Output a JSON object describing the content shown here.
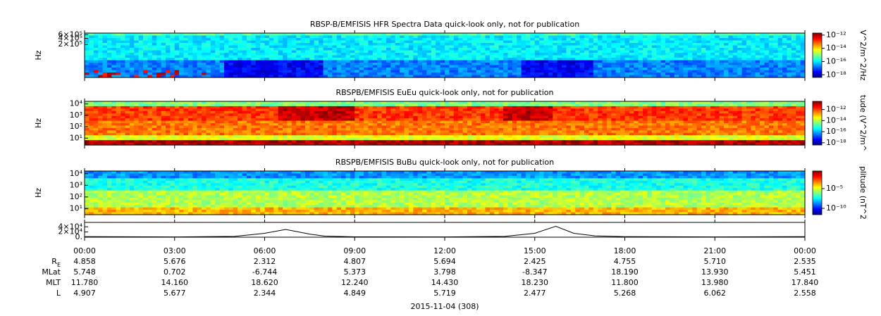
{
  "chart_data": [
    {
      "type": "spectrogram",
      "title": "RBSP-B/EMFISIS  HFR Spectra Data quick-look only, not for publication",
      "ylabel": "Hz",
      "log_y": true,
      "ylim": [
        5000,
        720000
      ],
      "yticks": [
        {
          "value": 600000,
          "label": "6×10⁵"
        },
        {
          "value": 400000,
          "label": "4×10⁵"
        },
        {
          "value": 200000,
          "label": "2×10⁵"
        }
      ],
      "colorbar": {
        "label": "V^2/m^2/Hz",
        "lim": [
          4e-19,
          2e-12
        ],
        "ticks": [
          {
            "value": 1e-12,
            "label": "10⁻¹²"
          },
          {
            "value": 1e-14,
            "label": "10⁻¹⁴"
          },
          {
            "value": 1e-16,
            "label": "10⁻¹⁶"
          },
          {
            "value": 1e-18,
            "label": "10⁻¹⁸"
          }
        ]
      }
    },
    {
      "type": "spectrogram",
      "title": "RBSPB/EMFISIS  EuEu quick-look only, not for publication",
      "ylabel": "Hz",
      "log_y": true,
      "ylim": [
        2.5,
        17000
      ],
      "yticks": [
        {
          "value": 10000,
          "label": "10⁴"
        },
        {
          "value": 1000,
          "label": "10³"
        },
        {
          "value": 100,
          "label": "10²"
        },
        {
          "value": 10,
          "label": "10¹"
        }
      ],
      "colorbar": {
        "label": "tude (V^2/m^",
        "lim": [
          4e-19,
          3e-11
        ],
        "ticks": [
          {
            "value": 1e-12,
            "label": "10⁻¹²"
          },
          {
            "value": 1e-14,
            "label": "10⁻¹⁴"
          },
          {
            "value": 1e-16,
            "label": "10⁻¹⁶"
          },
          {
            "value": 1e-18,
            "label": "10⁻¹⁸"
          }
        ]
      }
    },
    {
      "type": "spectrogram",
      "title": "RBSPB/EMFISIS  BuBu quick-look only, not for publication",
      "ylabel": "Hz",
      "log_y": true,
      "ylim": [
        3,
        17000
      ],
      "yticks": [
        {
          "value": 10000,
          "label": "10⁴"
        },
        {
          "value": 1000,
          "label": "10³"
        },
        {
          "value": 100,
          "label": "10²"
        },
        {
          "value": 10,
          "label": "10¹"
        }
      ],
      "colorbar": {
        "label": "plitude (nT^2",
        "lim": [
          2.5e-12,
          0.3
        ],
        "ticks": [
          {
            "value": 1e-05,
            "label": "10⁻⁵"
          },
          {
            "value": 1e-10,
            "label": "10⁻¹⁰"
          }
        ]
      }
    },
    {
      "type": "line",
      "color": "#000000",
      "xlim": [
        0,
        24
      ],
      "ylim": [
        0,
        57000
      ],
      "yticks": [
        {
          "value": 40000,
          "label": "4×10⁴"
        },
        {
          "value": 20000,
          "label": "2×10⁴"
        },
        {
          "value": 0,
          "label": "0."
        }
      ],
      "x": [
        0,
        3,
        5,
        6,
        6.7,
        7.5,
        8,
        9,
        12,
        14,
        15,
        15.7,
        16.3,
        17,
        18,
        21,
        24
      ],
      "values": [
        2000,
        1000,
        3000,
        15000,
        30000,
        12000,
        4000,
        1500,
        1000,
        3000,
        15000,
        42000,
        15000,
        5000,
        2000,
        1000,
        2000
      ],
      "xticks": [
        {
          "value": 0,
          "label": "00:00"
        },
        {
          "value": 3,
          "label": "03:00"
        },
        {
          "value": 6,
          "label": "06:00"
        },
        {
          "value": 9,
          "label": "09:00"
        },
        {
          "value": 12,
          "label": "12:00"
        },
        {
          "value": 15,
          "label": "15:00"
        },
        {
          "value": 18,
          "label": "18:00"
        },
        {
          "value": 21,
          "label": "21:00"
        },
        {
          "value": 24,
          "label": "00:00"
        }
      ],
      "xlabel": "2015-11-04 (308)",
      "ephemeris": [
        {
          "label": "R",
          "sub": "E",
          "values": [
            "4.858",
            "5.676",
            "2.312",
            "4.807",
            "5.694",
            "2.425",
            "4.755",
            "5.710",
            "2.535"
          ]
        },
        {
          "label": "MLat",
          "values": [
            "5.748",
            "0.702",
            "-6.744",
            "5.373",
            "3.798",
            "-8.347",
            "18.190",
            "13.930",
            "5.451"
          ]
        },
        {
          "label": "MLT",
          "values": [
            "11.780",
            "14.160",
            "18.620",
            "12.240",
            "14.430",
            "18.230",
            "11.800",
            "13.980",
            "17.840"
          ]
        },
        {
          "label": "L",
          "values": [
            "4.907",
            "5.677",
            "2.344",
            "4.849",
            "5.719",
            "2.477",
            "5.268",
            "6.062",
            "2.558"
          ]
        }
      ]
    }
  ]
}
